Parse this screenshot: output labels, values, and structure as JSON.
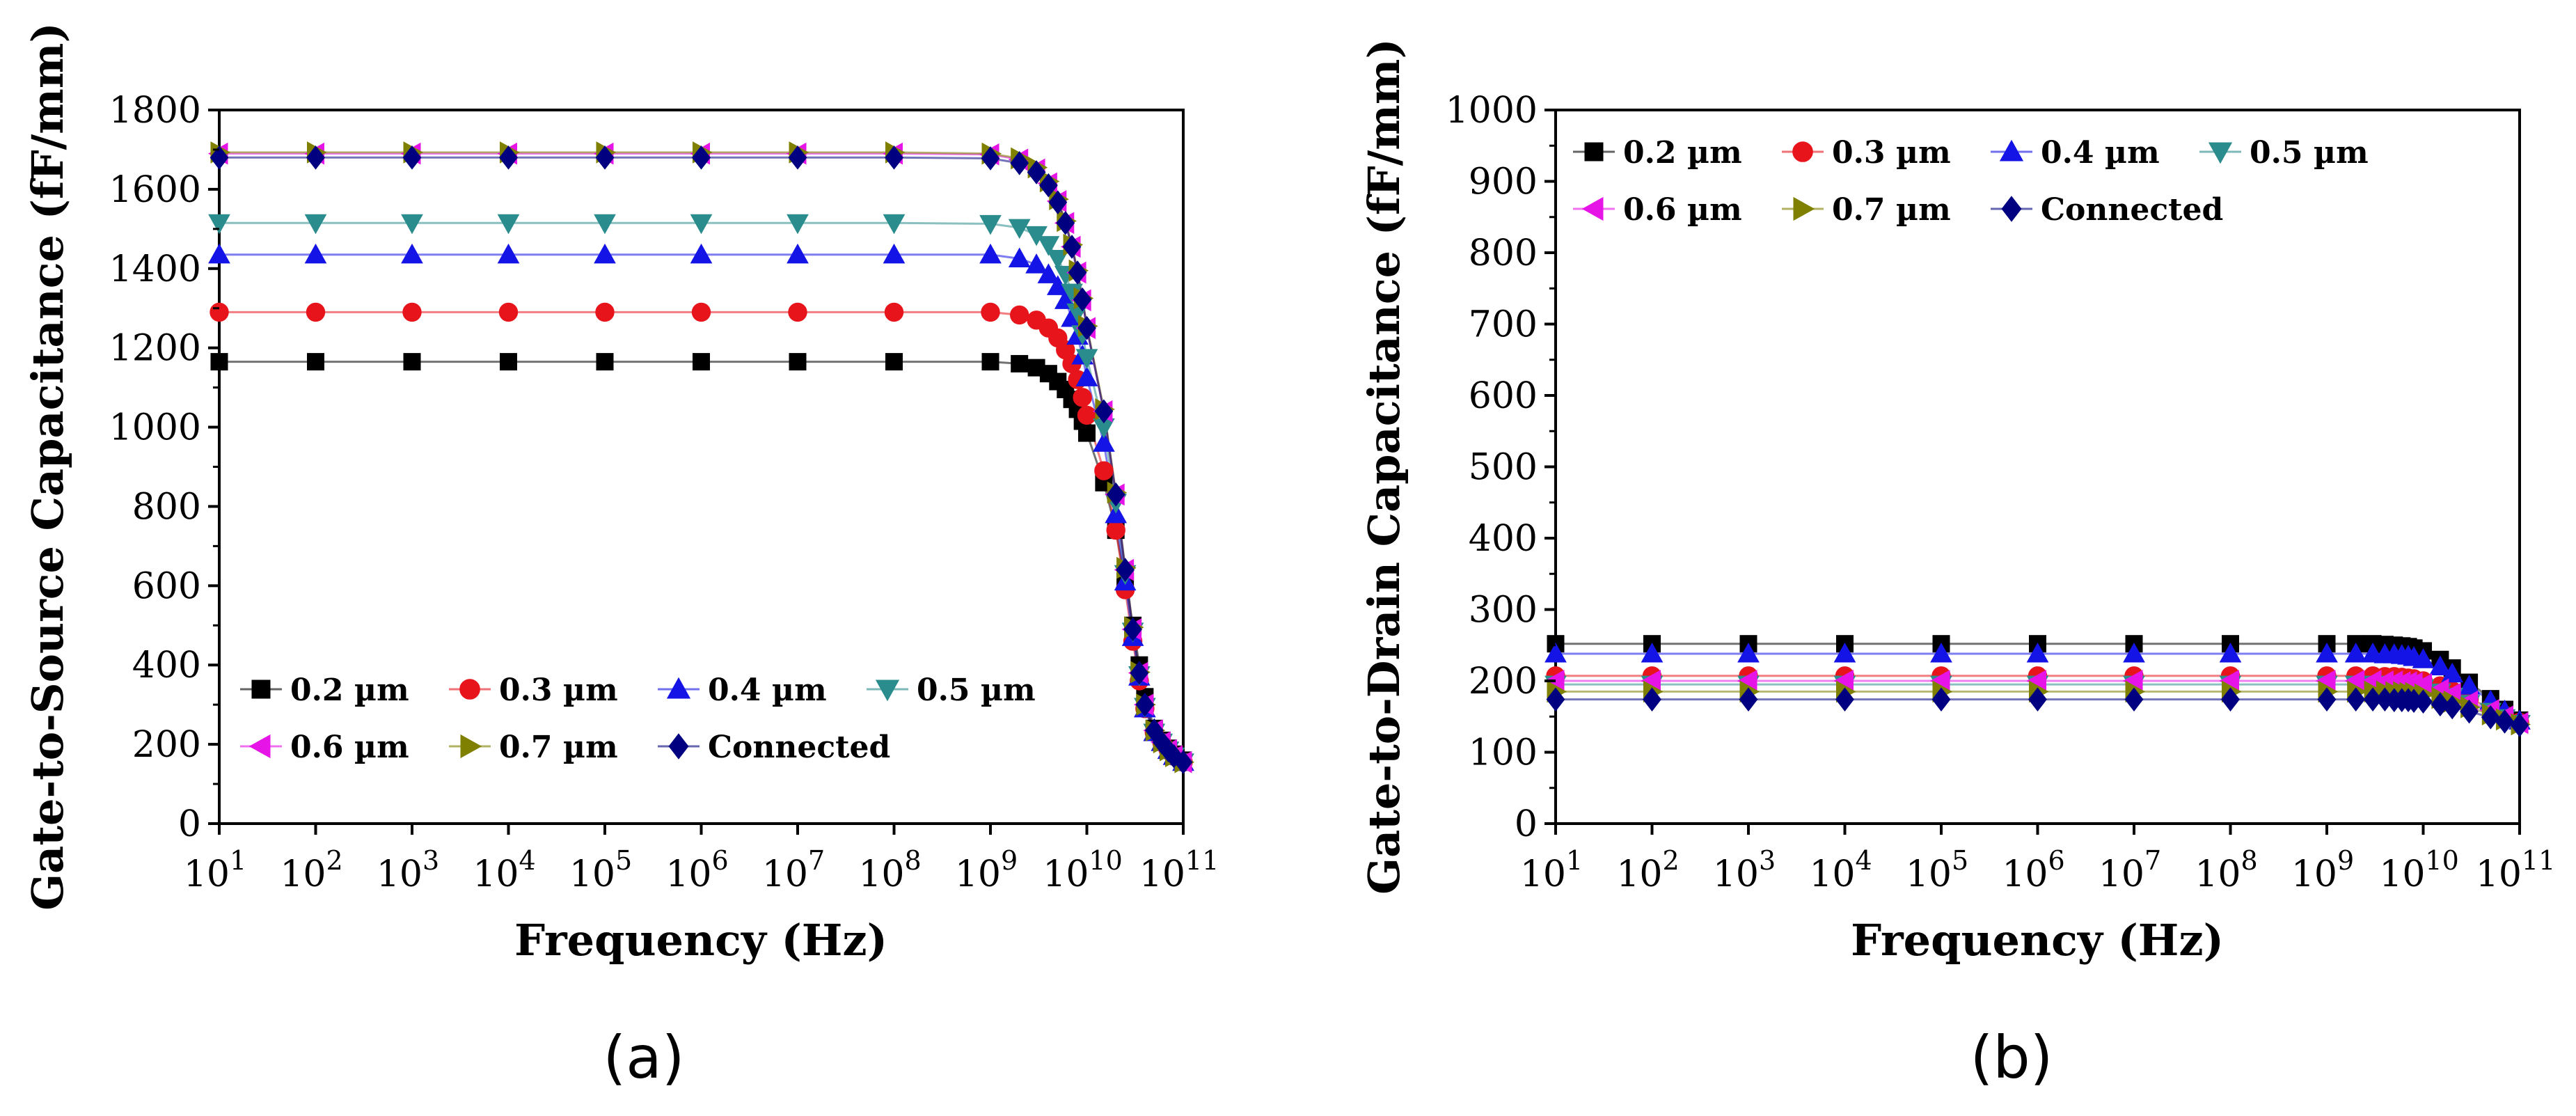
{
  "figure": {
    "panels": [
      "(a)",
      "(b)"
    ]
  },
  "chart_data": [
    {
      "type": "scatter",
      "panel_label": "(a)",
      "xlabel": "Frequency (Hz)",
      "ylabel": "Gate-to-Source Capacitance (fF/mm)",
      "xscale": "log",
      "xlim": [
        10,
        100000000000
      ],
      "ylim": [
        0,
        1800
      ],
      "yticks": [
        0,
        200,
        400,
        600,
        800,
        1000,
        1200,
        1400,
        1600,
        1800
      ],
      "xtick_exponents": [
        "1",
        "2",
        "3",
        "4",
        "5",
        "6",
        "7",
        "8",
        "9",
        "10",
        "11"
      ],
      "legend_position": "bottom-left",
      "x": [
        10,
        100,
        1000,
        10000,
        100000,
        1000000,
        10000000,
        100000000,
        1000000000,
        2000000000,
        3000000000,
        4000000000,
        5000000000,
        6000000000,
        7000000000,
        8000000000,
        9000000000,
        10000000000,
        15000000000,
        20000000000,
        25000000000,
        30000000000,
        35000000000,
        40000000000,
        50000000000,
        60000000000,
        70000000000,
        80000000000,
        100000000000
      ],
      "series": [
        {
          "name": "0.2 µm",
          "marker": "square",
          "color": "#000000",
          "values": [
            1165,
            1165,
            1165,
            1165,
            1165,
            1165,
            1165,
            1165,
            1165,
            1160,
            1150,
            1135,
            1115,
            1095,
            1070,
            1045,
            1015,
            985,
            860,
            740,
            610,
            500,
            400,
            320,
            240,
            210,
            190,
            175,
            160
          ]
        },
        {
          "name": "0.3 µm",
          "marker": "circle",
          "color": "#e8141c",
          "values": [
            1290,
            1290,
            1290,
            1290,
            1290,
            1290,
            1290,
            1290,
            1290,
            1283,
            1270,
            1250,
            1225,
            1195,
            1160,
            1120,
            1075,
            1030,
            890,
            740,
            590,
            460,
            360,
            290,
            230,
            205,
            185,
            170,
            155
          ]
        },
        {
          "name": "0.4 µm",
          "marker": "triangle-up",
          "color": "#1414e6",
          "values": [
            1435,
            1435,
            1435,
            1435,
            1435,
            1435,
            1435,
            1435,
            1435,
            1425,
            1410,
            1385,
            1355,
            1320,
            1275,
            1230,
            1180,
            1125,
            960,
            780,
            610,
            470,
            370,
            290,
            230,
            205,
            185,
            170,
            155
          ]
        },
        {
          "name": "0.5 µm",
          "marker": "triangle-down",
          "color": "#2a8c8c",
          "values": [
            1515,
            1515,
            1515,
            1515,
            1515,
            1515,
            1515,
            1515,
            1513,
            1503,
            1485,
            1460,
            1425,
            1385,
            1340,
            1290,
            1235,
            1175,
            1000,
            810,
            630,
            485,
            375,
            295,
            230,
            205,
            185,
            170,
            155
          ]
        },
        {
          "name": "0.6 µm",
          "marker": "triangle-left",
          "color": "#e614e6",
          "values": [
            1690,
            1690,
            1690,
            1690,
            1690,
            1690,
            1690,
            1690,
            1688,
            1675,
            1650,
            1615,
            1570,
            1515,
            1455,
            1390,
            1320,
            1250,
            1040,
            830,
            640,
            490,
            380,
            300,
            235,
            205,
            185,
            170,
            155
          ]
        },
        {
          "name": "0.7 µm",
          "marker": "triangle-right",
          "color": "#808000",
          "values": [
            1693,
            1693,
            1693,
            1693,
            1693,
            1693,
            1693,
            1693,
            1690,
            1678,
            1655,
            1620,
            1575,
            1520,
            1460,
            1395,
            1325,
            1255,
            1045,
            835,
            645,
            495,
            382,
            300,
            235,
            205,
            185,
            170,
            155
          ]
        },
        {
          "name": "Connected",
          "marker": "diamond",
          "color": "#000080",
          "values": [
            1680,
            1680,
            1680,
            1680,
            1680,
            1680,
            1680,
            1680,
            1678,
            1666,
            1643,
            1610,
            1567,
            1515,
            1455,
            1390,
            1322,
            1250,
            1040,
            830,
            640,
            490,
            380,
            300,
            235,
            205,
            185,
            170,
            155
          ]
        }
      ]
    },
    {
      "type": "scatter",
      "panel_label": "(b)",
      "xlabel": "Frequency (Hz)",
      "ylabel": "Gate-to-Drain Capacitance (fF/mm)",
      "xscale": "log",
      "xlim": [
        10,
        100000000000
      ],
      "ylim": [
        0,
        1000
      ],
      "yticks": [
        0,
        100,
        200,
        300,
        400,
        500,
        600,
        700,
        800,
        900,
        1000
      ],
      "xtick_exponents": [
        "1",
        "2",
        "3",
        "4",
        "5",
        "6",
        "7",
        "8",
        "9",
        "10",
        "11"
      ],
      "legend_position": "top-left",
      "x": [
        10,
        100,
        1000,
        10000,
        100000,
        1000000,
        10000000,
        100000000,
        1000000000,
        2000000000,
        3000000000,
        4000000000,
        5000000000,
        6000000000,
        7000000000,
        8000000000,
        10000000000,
        15000000000,
        20000000000,
        30000000000,
        50000000000,
        70000000000,
        100000000000
      ],
      "series": [
        {
          "name": "0.2 µm",
          "marker": "square",
          "color": "#000000",
          "values": [
            252,
            252,
            252,
            252,
            252,
            252,
            252,
            252,
            252,
            252,
            252,
            251,
            250,
            249,
            248,
            246,
            242,
            230,
            218,
            198,
            175,
            160,
            145
          ]
        },
        {
          "name": "0.3 µm",
          "marker": "circle",
          "color": "#e8141c",
          "values": [
            207,
            207,
            207,
            207,
            207,
            207,
            207,
            207,
            207,
            207,
            207,
            206,
            206,
            205,
            204,
            203,
            200,
            193,
            186,
            175,
            162,
            152,
            142
          ]
        },
        {
          "name": "0.4 µm",
          "marker": "triangle-up",
          "color": "#1414e6",
          "values": [
            238,
            238,
            238,
            238,
            238,
            238,
            238,
            238,
            238,
            238,
            238,
            237,
            237,
            236,
            235,
            233,
            230,
            220,
            210,
            193,
            172,
            158,
            144
          ]
        },
        {
          "name": "0.5 µm",
          "marker": "triangle-down",
          "color": "#2a8c8c",
          "values": [
            195,
            195,
            195,
            195,
            195,
            195,
            195,
            195,
            195,
            195,
            195,
            195,
            194,
            194,
            193,
            192,
            190,
            184,
            178,
            168,
            157,
            148,
            140
          ]
        },
        {
          "name": "0.6 µm",
          "marker": "triangle-left",
          "color": "#e614e6",
          "values": [
            200,
            200,
            200,
            200,
            200,
            200,
            200,
            200,
            200,
            200,
            200,
            199,
            199,
            198,
            198,
            197,
            195,
            188,
            182,
            171,
            159,
            150,
            141
          ]
        },
        {
          "name": "0.7 µm",
          "marker": "triangle-right",
          "color": "#808000",
          "values": [
            185,
            185,
            185,
            185,
            185,
            185,
            185,
            185,
            185,
            185,
            185,
            185,
            184,
            184,
            183,
            183,
            181,
            176,
            171,
            163,
            153,
            146,
            139
          ]
        },
        {
          "name": "Connected",
          "marker": "diamond",
          "color": "#000080",
          "values": [
            174,
            174,
            174,
            174,
            174,
            174,
            174,
            174,
            174,
            174,
            174,
            174,
            173,
            173,
            173,
            172,
            171,
            167,
            163,
            157,
            149,
            143,
            138
          ]
        }
      ]
    }
  ]
}
